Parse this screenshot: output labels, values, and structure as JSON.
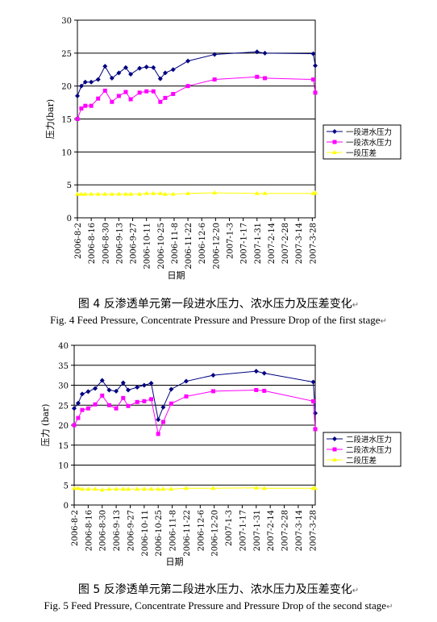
{
  "dates": [
    "2006-8-2",
    "2006-8-16",
    "2006-8-30",
    "2006-9-13",
    "2006-9-27",
    "2006-10-11",
    "2006-10-25",
    "2006-11-8",
    "2006-11-22",
    "2006-12-6",
    "2006-12-20",
    "2007-1-3",
    "2007-1-17",
    "2007-1-31",
    "2007-2-14",
    "2007-2-28",
    "2007-3-14",
    "2007-3-28"
  ],
  "para_mark": "↵",
  "chart_data": [
    {
      "type": "line",
      "x": [
        0,
        4,
        8,
        14,
        21,
        28,
        35,
        42,
        49,
        54,
        63,
        70,
        77,
        84,
        89,
        97,
        112,
        139,
        182,
        190,
        239,
        241
      ],
      "ylabel": "压力(bar)",
      "xlabel": "日期",
      "ylim": [
        0,
        30
      ],
      "yticks": [
        0,
        5,
        10,
        15,
        20,
        25,
        30
      ],
      "legend_position": "right",
      "grid": true,
      "caption_cn": "图 4  反渗透单元第一段进水压力、浓水压力及压差变化",
      "caption_en": "Fig. 4 Feed Pressure, Concentrate Pressure and Pressure Drop of the first stage",
      "series": [
        {
          "name": "一段进水压力",
          "color": "#000080",
          "marker": "diamond",
          "values": [
            18.5,
            20.0,
            20.6,
            20.6,
            21.0,
            23.0,
            21.2,
            22.0,
            22.8,
            21.8,
            22.7,
            22.9,
            22.8,
            21.1,
            22.0,
            22.5,
            23.8,
            24.8,
            25.2,
            25.0,
            24.9,
            23.1
          ]
        },
        {
          "name": "一段浓水压力",
          "color": "#ff00ff",
          "marker": "square",
          "values": [
            15.0,
            16.6,
            17.0,
            17.0,
            18.1,
            19.3,
            17.6,
            18.5,
            19.1,
            18.0,
            19.0,
            19.2,
            19.2,
            17.6,
            18.2,
            18.8,
            20.0,
            21.0,
            21.4,
            21.2,
            21.0,
            19.0
          ]
        },
        {
          "name": "一段压差",
          "color": "#ffff00",
          "marker": "triangle",
          "values": [
            3.6,
            3.6,
            3.6,
            3.6,
            3.6,
            3.6,
            3.6,
            3.6,
            3.6,
            3.6,
            3.6,
            3.7,
            3.7,
            3.7,
            3.6,
            3.6,
            3.7,
            3.8,
            3.7,
            3.7,
            3.7,
            3.8
          ]
        }
      ]
    },
    {
      "type": "line",
      "x": [
        0,
        4,
        8,
        14,
        21,
        28,
        35,
        42,
        49,
        54,
        63,
        70,
        77,
        84,
        89,
        97,
        112,
        139,
        182,
        190,
        239,
        241
      ],
      "ylabel": "压力 (bar)",
      "xlabel": "日期",
      "ylim": [
        0,
        40
      ],
      "yticks": [
        0,
        5,
        10,
        15,
        20,
        25,
        30,
        35,
        40
      ],
      "legend_position": "right",
      "grid": true,
      "caption_cn": "图 5  反渗透单元第二段进水压力、浓水压力及压差变化",
      "caption_en": "Fig. 5 Feed Pressure, Concentrate Pressure and Pressure Drop of the second stage",
      "series": [
        {
          "name": "二段进水压力",
          "color": "#000080",
          "marker": "diamond",
          "values": [
            24.2,
            25.5,
            27.8,
            28.4,
            29.2,
            31.2,
            28.8,
            28.5,
            30.6,
            28.8,
            29.5,
            30.0,
            30.5,
            21.4,
            24.5,
            29.0,
            31.0,
            32.5,
            33.5,
            33.0,
            30.8,
            23.0
          ]
        },
        {
          "name": "二段浓水压力",
          "color": "#ff00ff",
          "marker": "square",
          "values": [
            20.0,
            21.8,
            23.8,
            24.2,
            25.2,
            27.4,
            25.0,
            24.2,
            26.8,
            24.8,
            25.8,
            26.0,
            26.5,
            17.8,
            20.8,
            25.4,
            27.2,
            28.5,
            28.8,
            28.6,
            26.0,
            19.0
          ]
        },
        {
          "name": "二段压差",
          "color": "#ffff00",
          "marker": "triangle",
          "values": [
            4.2,
            4.2,
            4.0,
            4.0,
            4.0,
            3.8,
            4.0,
            4.0,
            4.0,
            4.0,
            4.0,
            4.0,
            4.0,
            4.0,
            4.0,
            4.0,
            4.2,
            4.2,
            4.3,
            4.2,
            4.2,
            4.2
          ]
        }
      ]
    }
  ]
}
